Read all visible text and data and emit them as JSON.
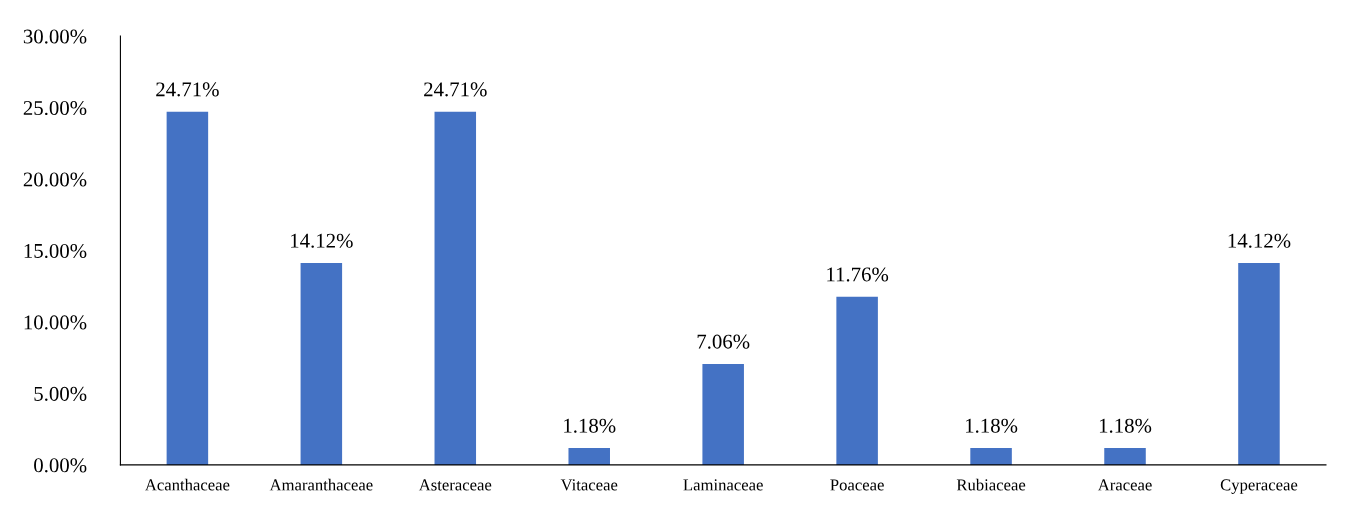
{
  "chart_data": {
    "type": "bar",
    "categories": [
      "Acanthaceae",
      "Amaranthaceae",
      "Asteraceae",
      "Vitaceae",
      "Laminaceae",
      "Poaceae",
      "Rubiaceae",
      "Araceae",
      "Cyperaceae"
    ],
    "values": [
      24.71,
      14.12,
      24.71,
      1.18,
      7.06,
      11.76,
      1.18,
      1.18,
      14.12
    ],
    "value_labels": [
      "24.71%",
      "14.12%",
      "24.71%",
      "1.18%",
      "7.06%",
      "11.76%",
      "1.18%",
      "1.18%",
      "14.12%"
    ],
    "color": "#4472c4",
    "ylim": [
      0,
      30
    ],
    "yticks": [
      {
        "value": 0,
        "label": "0.00%"
      },
      {
        "value": 5,
        "label": "5.00%"
      },
      {
        "value": 10,
        "label": "10.00%"
      },
      {
        "value": 15,
        "label": "15.00%"
      },
      {
        "value": 20,
        "label": "20.00%"
      },
      {
        "value": 25,
        "label": "25.00%"
      },
      {
        "value": 30,
        "label": "30.00%"
      }
    ],
    "grid": false,
    "legend": false
  }
}
